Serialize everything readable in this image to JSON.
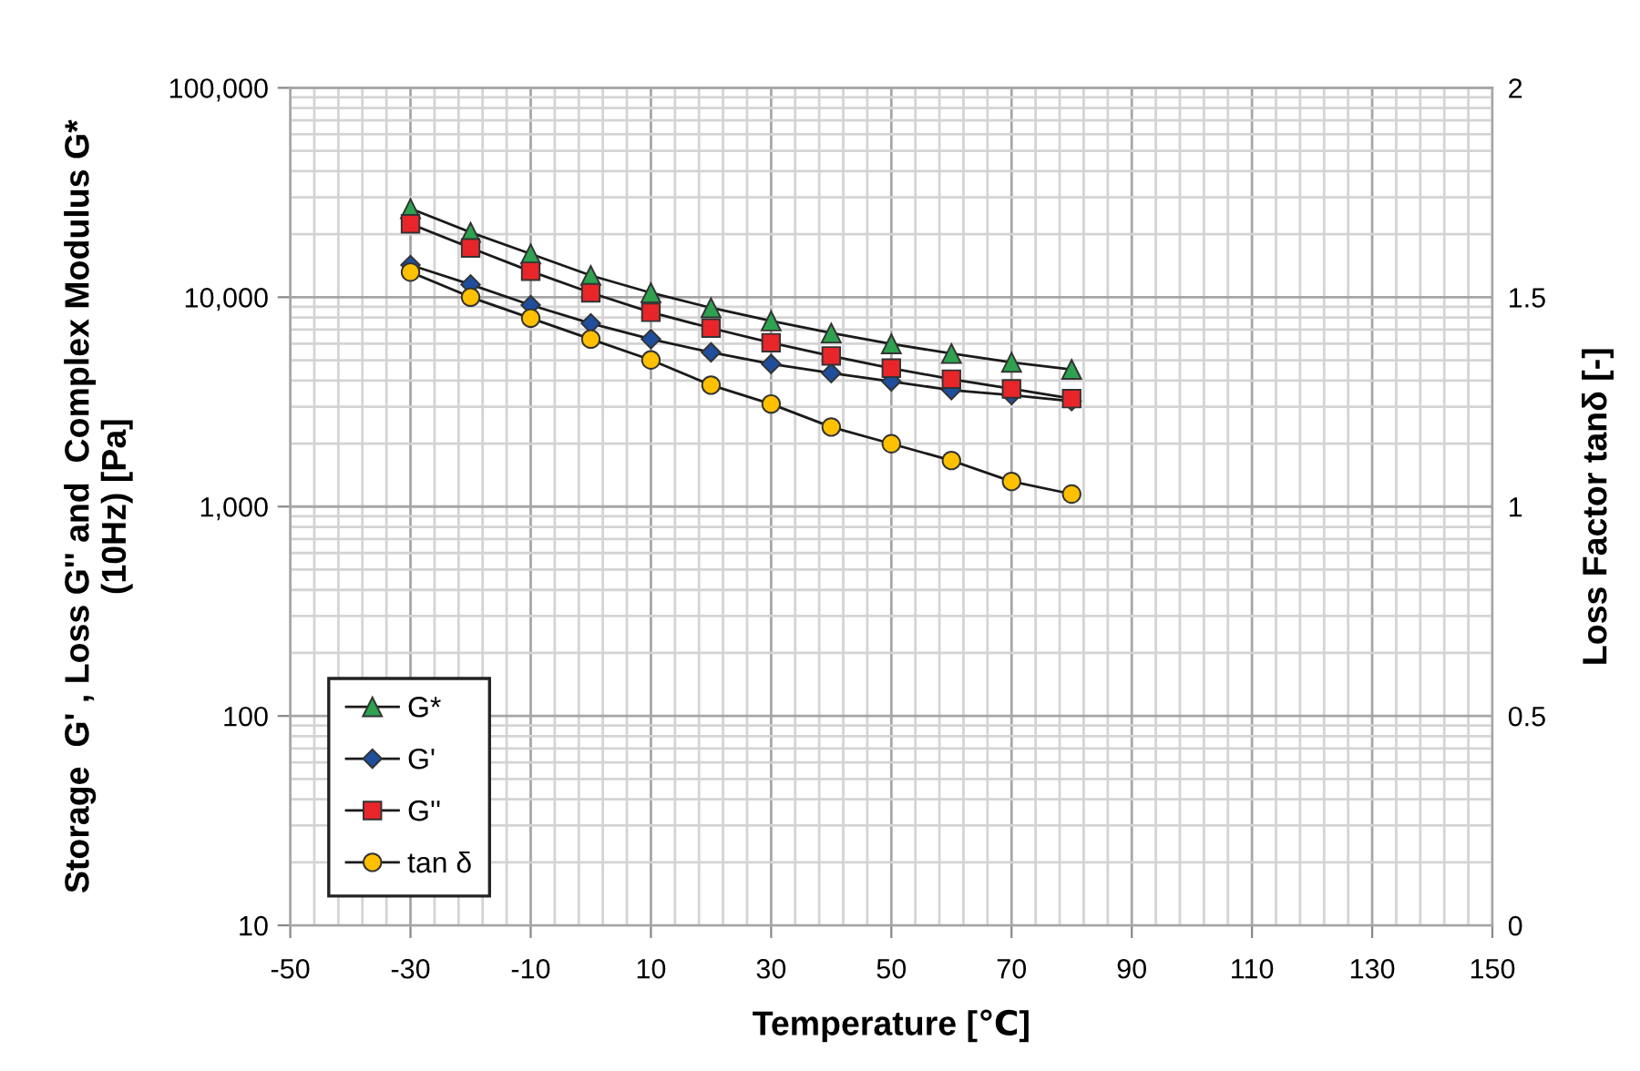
{
  "chart_data": {
    "type": "line",
    "xlabel": "Temperature [℃]",
    "ylabel": "Storage  G' , Loss G'' and  Complex Modulus G*\n(10Hz) [Pa]",
    "y2label": "Loss Factor tanδ [-]",
    "x": [
      -30,
      -20,
      -10,
      0,
      10,
      20,
      30,
      40,
      50,
      60,
      70,
      80
    ],
    "series": [
      {
        "name": "G*",
        "color": "#2ea24f",
        "marker": "triangle",
        "values": [
          26500,
          20400,
          16100,
          12700,
          10500,
          8900,
          7700,
          6740,
          5980,
          5380,
          4890,
          4520
        ]
      },
      {
        "name": "G'",
        "color": "#1f4e9c",
        "marker": "diamond",
        "values": [
          14250,
          11500,
          9170,
          7500,
          6310,
          5450,
          4800,
          4340,
          3960,
          3600,
          3410,
          3190
        ]
      },
      {
        "name": "G''",
        "color": "#e8262a",
        "marker": "square",
        "values": [
          22400,
          17200,
          13300,
          10500,
          8470,
          7120,
          6060,
          5240,
          4580,
          4060,
          3650,
          3280
        ]
      },
      {
        "name": "tan δ",
        "color": "#ffc000",
        "marker": "circle",
        "axis": "y2",
        "values": [
          1.56,
          1.5,
          1.45,
          1.4,
          1.35,
          1.29,
          1.245,
          1.19,
          1.15,
          1.11,
          1.06,
          1.03
        ]
      }
    ],
    "xlim": [
      -50,
      150
    ],
    "xticks": [
      -50,
      -30,
      -10,
      10,
      30,
      50,
      70,
      90,
      110,
      130,
      150
    ],
    "ylim": [
      10,
      100000
    ],
    "yticks": [
      10,
      100,
      {
        "value": 1000,
        "label": "1,000"
      },
      {
        "value": 10000,
        "label": "10,000"
      },
      {
        "value": 100000,
        "label": "100,000"
      }
    ],
    "y2lim": [
      0,
      2
    ],
    "y2ticks": [
      0,
      0.5,
      1,
      1.5,
      2
    ],
    "log": "y",
    "grid": true,
    "legend": "bottom left",
    "line_style": "solid"
  }
}
